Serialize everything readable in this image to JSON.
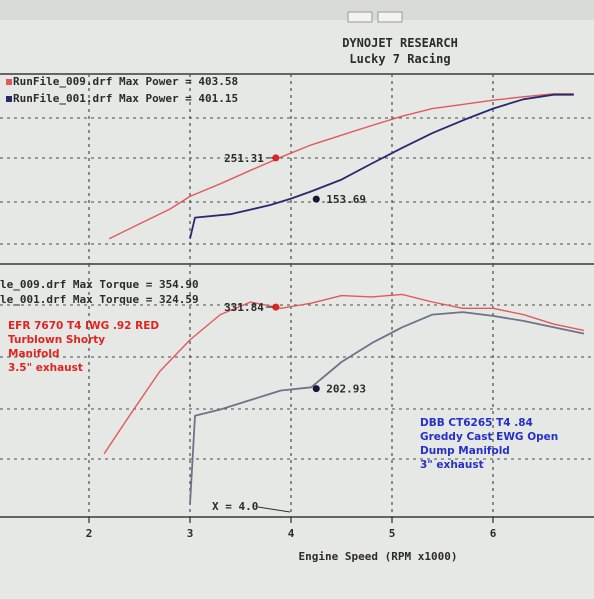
{
  "header": {
    "title": "DYNOJET RESEARCH",
    "subtitle": "Lucky 7 Racing"
  },
  "power_legend": [
    {
      "text": "RunFile_009.drf Max Power = 403.58",
      "color": "#e15a5a"
    },
    {
      "text": "RunFile_001.drf Max Power = 401.15",
      "color": "#262a6e"
    }
  ],
  "torque_legend": [
    {
      "text": "le_009.drf Max Torque = 354.90"
    },
    {
      "text": "le_001.drf Max Torque = 324.59"
    }
  ],
  "annotations": {
    "efr_setup": [
      "EFR 7670 T4 IWG .92 RED",
      "Turblown Shorty",
      "Manifold",
      "3.5\" exhaust"
    ],
    "dbb_setup": [
      "DBB CT6265 T4 .84",
      "Greddy Cast EWG Open",
      "Dump Manifold",
      "3\" exhaust"
    ],
    "cursor": "X = 4.0"
  },
  "x_axis": {
    "label": "Engine Speed (RPM x1000)",
    "ticks": [
      "2",
      "3",
      "4",
      "5",
      "6"
    ]
  },
  "chart_data": [
    {
      "type": "line",
      "panel": "power",
      "xlim": [
        1.5,
        7.0
      ],
      "ylim": [
        0,
        450
      ],
      "grid": true,
      "legend_placement": "top-left",
      "series": [
        {
          "name": "RunFile_009.drf",
          "color": "#e15a5a",
          "x": [
            2.2,
            2.5,
            2.8,
            3.0,
            3.3,
            3.6,
            3.9,
            4.2,
            4.5,
            4.8,
            5.1,
            5.4,
            5.7,
            6.0,
            6.3,
            6.6,
            6.8
          ],
          "y": [
            60,
            95,
            130,
            160,
            190,
            222,
            253,
            282,
            305,
            328,
            350,
            368,
            378,
            388,
            396,
            403,
            403
          ]
        },
        {
          "name": "RunFile_001.drf",
          "color": "#262a6e",
          "x": [
            3.0,
            3.05,
            3.4,
            3.8,
            4.0,
            4.2,
            4.5,
            4.8,
            5.1,
            5.4,
            5.7,
            6.0,
            6.3,
            6.6,
            6.8
          ],
          "y": [
            60,
            110,
            118,
            140,
            155,
            172,
            200,
            238,
            275,
            310,
            340,
            368,
            390,
            401,
            401
          ]
        }
      ],
      "point_labels": [
        {
          "x": 3.85,
          "y": 251.31,
          "text": "251.31",
          "series": 0
        },
        {
          "x": 4.25,
          "y": 153.69,
          "text": "153.69",
          "series": 1
        }
      ]
    },
    {
      "type": "line",
      "panel": "torque",
      "xlim": [
        1.5,
        7.0
      ],
      "ylim": [
        0,
        400
      ],
      "grid": true,
      "legend_placement": "top-left",
      "series": [
        {
          "name": "RunFile_009.drf",
          "color": "#e15a5a",
          "x": [
            2.15,
            2.4,
            2.7,
            3.0,
            3.3,
            3.6,
            3.9,
            4.2,
            4.5,
            4.8,
            5.1,
            5.4,
            5.7,
            6.0,
            6.3,
            6.6,
            6.9
          ],
          "y": [
            100,
            160,
            230,
            280,
            320,
            340,
            330,
            338,
            350,
            348,
            352,
            340,
            330,
            330,
            320,
            305,
            295
          ]
        },
        {
          "name": "RunFile_001.drf",
          "color": "#6f7388",
          "x": [
            3.0,
            3.05,
            3.3,
            3.6,
            3.9,
            4.2,
            4.5,
            4.8,
            5.1,
            5.4,
            5.7,
            6.0,
            6.3,
            6.6,
            6.9
          ],
          "y": [
            20,
            160,
            170,
            185,
            200,
            205,
            245,
            275,
            300,
            320,
            324,
            318,
            310,
            300,
            290
          ]
        }
      ],
      "point_labels": [
        {
          "x": 3.85,
          "y": 331.84,
          "text": "331.84",
          "series": 0
        },
        {
          "x": 4.25,
          "y": 202.93,
          "text": "202.93",
          "series": 1
        }
      ]
    }
  ]
}
